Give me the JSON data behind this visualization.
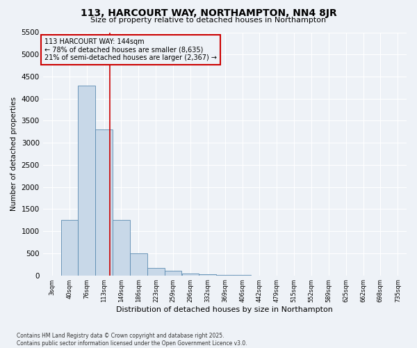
{
  "title": "113, HARCOURT WAY, NORTHAMPTON, NN4 8JR",
  "subtitle": "Size of property relative to detached houses in Northampton",
  "xlabel": "Distribution of detached houses by size in Northampton",
  "ylabel": "Number of detached properties",
  "bin_starts": [
    3,
    40,
    76,
    113,
    149,
    186,
    223,
    259,
    296,
    332,
    369,
    406,
    442,
    479,
    515,
    552,
    589,
    625,
    662,
    698,
    735
  ],
  "counts": [
    0,
    1250,
    4300,
    3300,
    1250,
    500,
    175,
    100,
    50,
    30,
    10,
    5,
    2,
    1,
    0,
    0,
    0,
    0,
    0,
    0
  ],
  "bar_color": "#c8d8e8",
  "bar_edge_color": "#5a8ab0",
  "vline_x": 144,
  "vline_color": "#cc0000",
  "annotation_title": "113 HARCOURT WAY: 144sqm",
  "annotation_line1": "← 78% of detached houses are smaller (8,635)",
  "annotation_line2": "21% of semi-detached houses are larger (2,367) →",
  "annotation_box_color": "#cc0000",
  "ylim": [
    0,
    5500
  ],
  "yticks": [
    0,
    500,
    1000,
    1500,
    2000,
    2500,
    3000,
    3500,
    4000,
    4500,
    5000,
    5500
  ],
  "bg_color": "#eef2f7",
  "grid_color": "#ffffff",
  "footer_line1": "Contains HM Land Registry data © Crown copyright and database right 2025.",
  "footer_line2": "Contains public sector information licensed under the Open Government Licence v3.0.",
  "title_fontsize": 10,
  "subtitle_fontsize": 8,
  "ylabel_fontsize": 7.5,
  "xlabel_fontsize": 8,
  "ytick_fontsize": 7.5,
  "xtick_fontsize": 6,
  "footer_fontsize": 5.5,
  "annot_fontsize": 7
}
